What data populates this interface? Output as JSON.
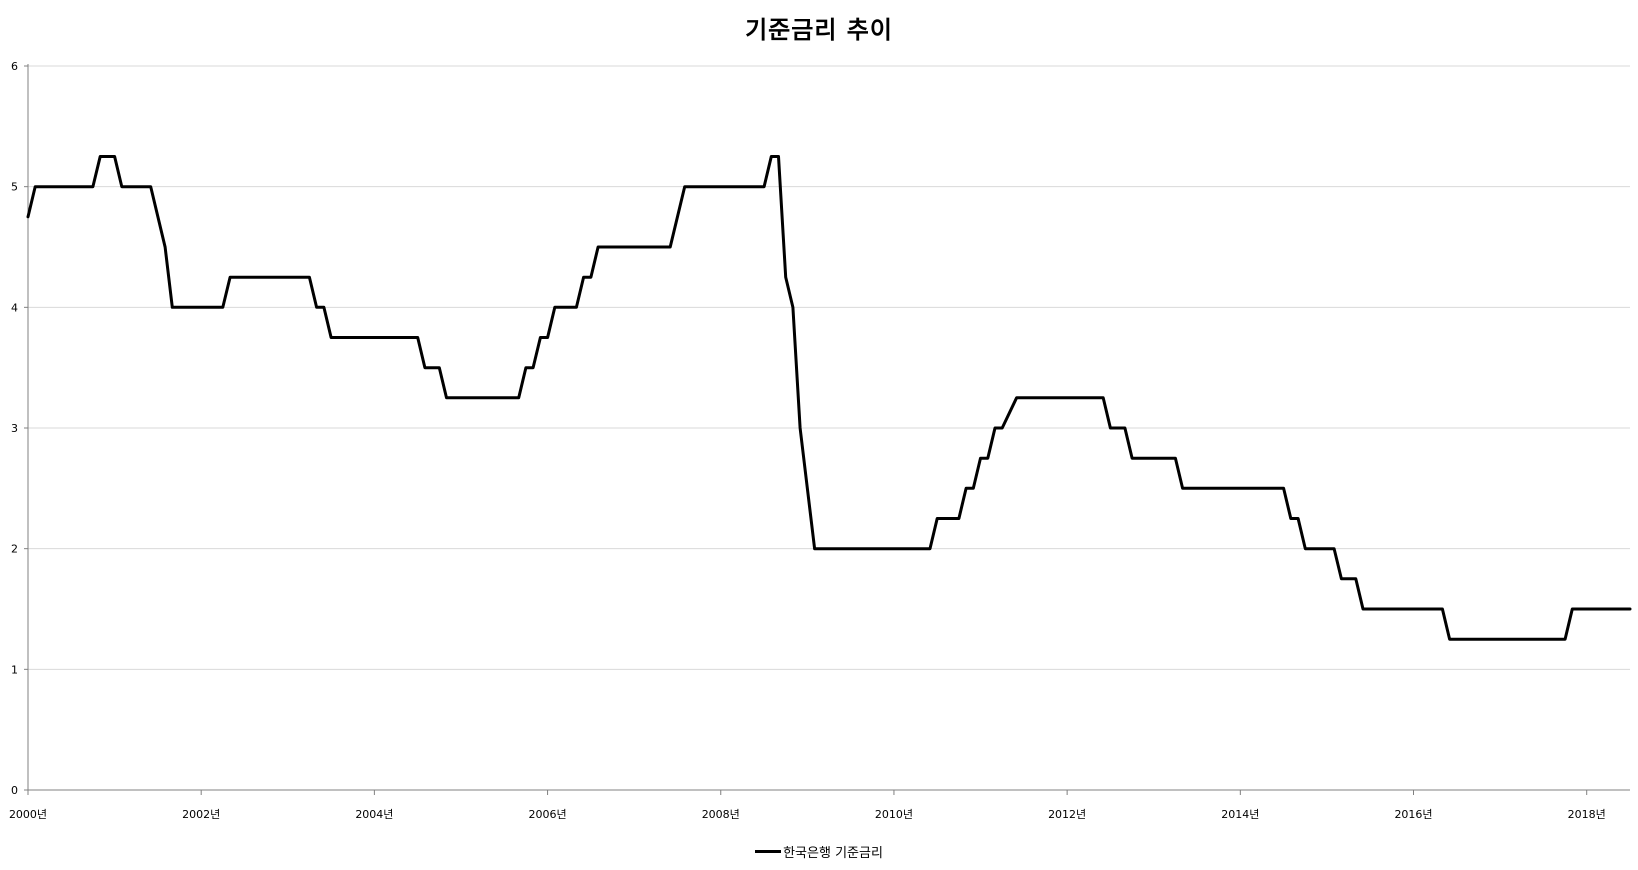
{
  "chart_data": {
    "type": "line",
    "title": "기준금리 추이",
    "xlabel": "",
    "ylabel": "",
    "ylim": [
      0,
      6
    ],
    "xlim": [
      "2000-01",
      "2018-07"
    ],
    "yticks": [
      "0",
      "1",
      "2",
      "3",
      "4",
      "5",
      "6"
    ],
    "xticks": [
      "2000년",
      "2002년",
      "2004년",
      "2006년",
      "2008년",
      "2010년",
      "2012년",
      "2014년",
      "2016년",
      "2018년"
    ],
    "grid": "horizontal",
    "legend_position": "bottom",
    "line_color": "#000000",
    "gridline_color": "#d9d9d9",
    "series": [
      {
        "name": "한국은행 기준금리",
        "points": [
          [
            "2000-01",
            4.75
          ],
          [
            "2000-02",
            5.0
          ],
          [
            "2000-10",
            5.0
          ],
          [
            "2000-11",
            5.25
          ],
          [
            "2001-01",
            5.25
          ],
          [
            "2001-02",
            5.0
          ],
          [
            "2001-06",
            5.0
          ],
          [
            "2001-08",
            4.5
          ],
          [
            "2001-09",
            4.0
          ],
          [
            "2002-04",
            4.0
          ],
          [
            "2002-05",
            4.25
          ],
          [
            "2003-04",
            4.25
          ],
          [
            "2003-05",
            4.0
          ],
          [
            "2003-06",
            4.0
          ],
          [
            "2003-07",
            3.75
          ],
          [
            "2004-07",
            3.75
          ],
          [
            "2004-08",
            3.5
          ],
          [
            "2004-10",
            3.5
          ],
          [
            "2004-11",
            3.25
          ],
          [
            "2005-09",
            3.25
          ],
          [
            "2005-10",
            3.5
          ],
          [
            "2005-11",
            3.5
          ],
          [
            "2005-12",
            3.75
          ],
          [
            "2006-01",
            3.75
          ],
          [
            "2006-02",
            4.0
          ],
          [
            "2006-05",
            4.0
          ],
          [
            "2006-06",
            4.25
          ],
          [
            "2006-07",
            4.25
          ],
          [
            "2006-08",
            4.5
          ],
          [
            "2007-06",
            4.5
          ],
          [
            "2007-08",
            5.0
          ],
          [
            "2008-07",
            5.0
          ],
          [
            "2008-08",
            5.25
          ],
          [
            "2008-09",
            5.25
          ],
          [
            "2008-10",
            4.25
          ],
          [
            "2008-11",
            4.0
          ],
          [
            "2008-12",
            3.0
          ],
          [
            "2009-02",
            2.0
          ],
          [
            "2010-06",
            2.0
          ],
          [
            "2010-07",
            2.25
          ],
          [
            "2010-10",
            2.25
          ],
          [
            "2010-11",
            2.5
          ],
          [
            "2010-12",
            2.5
          ],
          [
            "2011-01",
            2.75
          ],
          [
            "2011-02",
            2.75
          ],
          [
            "2011-03",
            3.0
          ],
          [
            "2011-04",
            3.0
          ],
          [
            "2011-06",
            3.25
          ],
          [
            "2012-06",
            3.25
          ],
          [
            "2012-07",
            3.0
          ],
          [
            "2012-09",
            3.0
          ],
          [
            "2012-10",
            2.75
          ],
          [
            "2013-04",
            2.75
          ],
          [
            "2013-05",
            2.5
          ],
          [
            "2014-07",
            2.5
          ],
          [
            "2014-08",
            2.25
          ],
          [
            "2014-09",
            2.25
          ],
          [
            "2014-10",
            2.0
          ],
          [
            "2015-02",
            2.0
          ],
          [
            "2015-03",
            1.75
          ],
          [
            "2015-05",
            1.75
          ],
          [
            "2015-06",
            1.5
          ],
          [
            "2016-05",
            1.5
          ],
          [
            "2016-06",
            1.25
          ],
          [
            "2017-10",
            1.25
          ],
          [
            "2017-11",
            1.5
          ],
          [
            "2018-07",
            1.5
          ]
        ]
      }
    ]
  }
}
